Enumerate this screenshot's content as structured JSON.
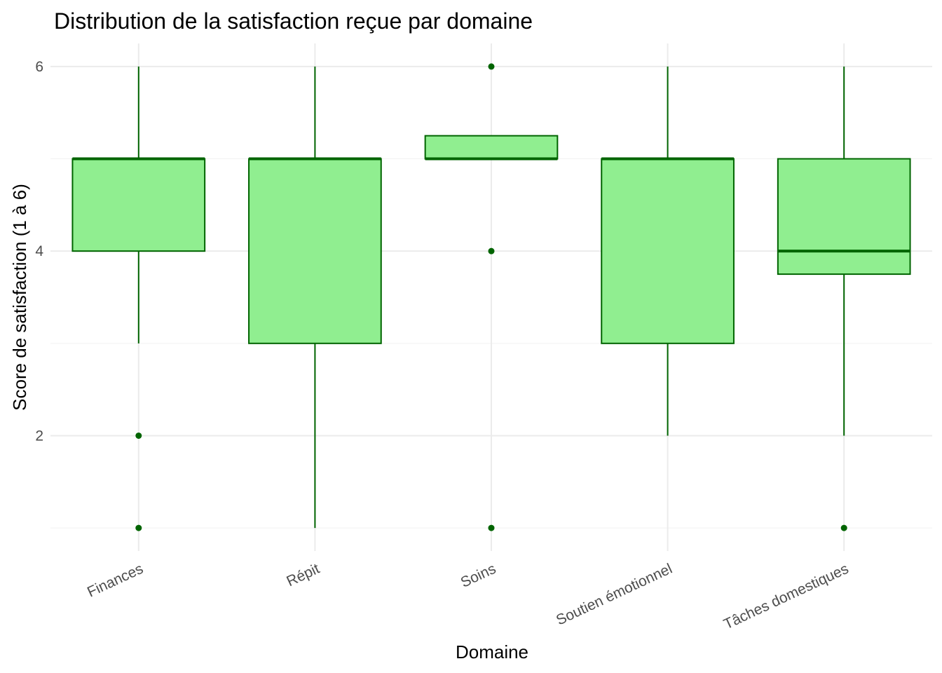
{
  "chart_data": {
    "type": "boxplot",
    "title": "Distribution de la satisfaction reçue par domaine",
    "xlabel": "Domaine",
    "ylabel": "Score de satisfaction (1 à 6)",
    "categories": [
      "Finances",
      "Répit",
      "Soins",
      "Soutien émotionnel",
      "Tâches domestiques"
    ],
    "boxes": [
      {
        "category": "Finances",
        "whisker_low": 3,
        "q1": 4,
        "median": 5,
        "q3": 5,
        "whisker_high": 6,
        "outliers": [
          2,
          1
        ]
      },
      {
        "category": "Répit",
        "whisker_low": 1,
        "q1": 3,
        "median": 5,
        "q3": 5,
        "whisker_high": 6,
        "outliers": []
      },
      {
        "category": "Soins",
        "whisker_low": 5,
        "q1": 5,
        "median": 5,
        "q3": 5.25,
        "whisker_high": 5.25,
        "outliers": [
          6,
          4,
          1
        ]
      },
      {
        "category": "Soutien émotionnel",
        "whisker_low": 2,
        "q1": 3,
        "median": 5,
        "q3": 5,
        "whisker_high": 6,
        "outliers": []
      },
      {
        "category": "Tâches domestiques",
        "whisker_low": 2,
        "q1": 3.75,
        "median": 4,
        "q3": 5,
        "whisker_high": 6,
        "outliers": [
          1
        ]
      }
    ],
    "y_ticks": [
      2,
      4,
      6
    ],
    "ylim": [
      0.75,
      6.25
    ],
    "grid": true,
    "legend": "none",
    "colors": {
      "fill": "#90EE90",
      "stroke": "#006400",
      "outlier": "#006400"
    }
  }
}
